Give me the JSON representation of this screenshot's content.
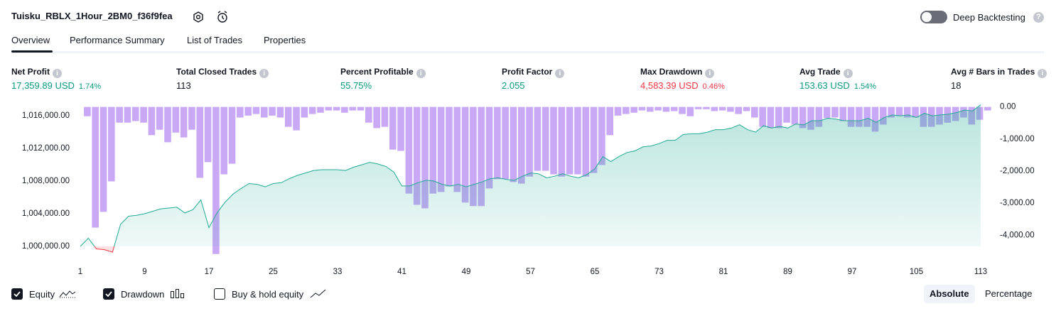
{
  "header": {
    "title": "Tuisku_RBLX_1Hour_2BM0_f36f9fea",
    "deep_backtesting": "Deep Backtesting"
  },
  "tabs": [
    "Overview",
    "Performance Summary",
    "List of Trades",
    "Properties"
  ],
  "metrics": [
    {
      "label": "Net Profit",
      "value": "17,359.89 USD",
      "pct": "1.74%",
      "tone": "positive"
    },
    {
      "label": "Total Closed Trades",
      "value": "113",
      "tone": "neutral"
    },
    {
      "label": "Percent Profitable",
      "value": "55.75%",
      "tone": "positive"
    },
    {
      "label": "Profit Factor",
      "value": "2.055",
      "tone": "positive"
    },
    {
      "label": "Max Drawdown",
      "value": "4,583.39 USD",
      "pct": "0.46%",
      "tone": "negative"
    },
    {
      "label": "Avg Trade",
      "value": "153.63 USD",
      "pct": "1.54%",
      "tone": "positive"
    },
    {
      "label": "Avg # Bars in Trades",
      "value": "18",
      "tone": "neutral"
    }
  ],
  "chart_data": {
    "type": "equity",
    "x": [
      1,
      2,
      3,
      4,
      5,
      6,
      7,
      8,
      9,
      10,
      11,
      12,
      13,
      14,
      15,
      16,
      17,
      18,
      19,
      20,
      21,
      22,
      23,
      24,
      25,
      26,
      27,
      28,
      29,
      30,
      31,
      32,
      33,
      34,
      35,
      36,
      37,
      38,
      39,
      40,
      41,
      42,
      43,
      44,
      45,
      46,
      47,
      48,
      49,
      50,
      51,
      52,
      53,
      54,
      55,
      56,
      57,
      58,
      59,
      60,
      61,
      62,
      63,
      64,
      65,
      66,
      67,
      68,
      69,
      70,
      71,
      72,
      73,
      74,
      75,
      76,
      77,
      78,
      79,
      80,
      81,
      82,
      83,
      84,
      85,
      86,
      87,
      88,
      89,
      90,
      91,
      92,
      93,
      94,
      95,
      96,
      97,
      98,
      99,
      100,
      101,
      102,
      103,
      104,
      105,
      106,
      107,
      108,
      109,
      110,
      111,
      112,
      113
    ],
    "xlim": [
      1,
      113
    ],
    "xticks": [
      1,
      9,
      17,
      25,
      33,
      41,
      49,
      57,
      65,
      73,
      81,
      89,
      97,
      105,
      113
    ],
    "ylim": [
      999000,
      1017400
    ],
    "yticks": [
      {
        "value": 1000000,
        "label": "1,000,000.00"
      },
      {
        "value": 1004000,
        "label": "1,004,000.00"
      },
      {
        "value": 1008000,
        "label": "1,008,000.00"
      },
      {
        "value": 1012000,
        "label": "1,012,000.00"
      },
      {
        "value": 1016000,
        "label": "1,016,000.00"
      }
    ],
    "y2lim": [
      -4600,
      80
    ],
    "y2ticks": [
      {
        "value": 0,
        "label": "0.00"
      },
      {
        "value": -1000,
        "label": "-1,000.00"
      },
      {
        "value": -2000,
        "label": "-2,000.00"
      },
      {
        "value": -3000,
        "label": "-3,000.00"
      },
      {
        "value": -4000,
        "label": "-4,000.00"
      }
    ],
    "series": [
      {
        "name": "Equity",
        "color": "#22ab94",
        "negative_color": "#f23645",
        "checked": true,
        "values": [
          1000000,
          1001000,
          999700,
          999600,
          999300,
          1002700,
          1003700,
          1003800,
          1004000,
          1004300,
          1004600,
          1004700,
          1004800,
          1004100,
          1004500,
          1005700,
          1002300,
          1004100,
          1005400,
          1006400,
          1007100,
          1007700,
          1007600,
          1007300,
          1007700,
          1007800,
          1008300,
          1008700,
          1009000,
          1009300,
          1009400,
          1009400,
          1009400,
          1009300,
          1009700,
          1010000,
          1010300,
          1010100,
          1009800,
          1009100,
          1007400,
          1007400,
          1007800,
          1008100,
          1008000,
          1007600,
          1007400,
          1007600,
          1007300,
          1007600,
          1007900,
          1008300,
          1008400,
          1008200,
          1008100,
          1008600,
          1009000,
          1008900,
          1008400,
          1008600,
          1008900,
          1008600,
          1008400,
          1008800,
          1009500,
          1011000,
          1010400,
          1011000,
          1011500,
          1011700,
          1012200,
          1012300,
          1012600,
          1013000,
          1013000,
          1013700,
          1013800,
          1013800,
          1014000,
          1014300,
          1014300,
          1014500,
          1014900,
          1014300,
          1014000,
          1014800,
          1014500,
          1014700,
          1014500,
          1015000,
          1014900,
          1015400,
          1015400,
          1015700,
          1015600,
          1015400,
          1015400,
          1015400,
          1015700,
          1015200,
          1015800,
          1016100,
          1016000,
          1016100,
          1015800,
          1016300,
          1016000,
          1016100,
          1016200,
          1016400,
          1016700,
          1016600,
          1017360
        ]
      },
      {
        "name": "Drawdown",
        "color": "#c9a9f6",
        "axis": "y2",
        "checked": true,
        "values": [
          -290,
          -3760,
          -3270,
          -2320,
          -490,
          -490,
          -440,
          -490,
          -880,
          -710,
          -1100,
          -800,
          -950,
          -710,
          -2210,
          -1720,
          -4583,
          -2100,
          -1770,
          -330,
          -270,
          -220,
          -330,
          -270,
          -330,
          -620,
          -730,
          -330,
          -220,
          -180,
          -110,
          -110,
          -180,
          -110,
          -110,
          -490,
          -660,
          -620,
          -1330,
          -1370,
          -2700,
          -3050,
          -3160,
          -2700,
          -2650,
          -2480,
          -2650,
          -2980,
          -3090,
          -3090,
          -2540,
          -2250,
          -2250,
          -2340,
          -2390,
          -2170,
          -1990,
          -1990,
          -2100,
          -2170,
          -2100,
          -2100,
          -2170,
          -2060,
          -1810,
          -880,
          -270,
          -220,
          -180,
          -110,
          -150,
          -110,
          -150,
          -130,
          -220,
          -290,
          -70,
          -70,
          -130,
          -110,
          -150,
          -220,
          -130,
          -330,
          -620,
          -660,
          -660,
          -490,
          -550,
          -660,
          -710,
          -620,
          -350,
          -330,
          -440,
          -620,
          -620,
          -620,
          -770,
          -550,
          -330,
          -290,
          -330,
          -330,
          -620,
          -620,
          -550,
          -490,
          -440,
          -330,
          -550,
          -400,
          -110
        ]
      }
    ],
    "extra_toggle": {
      "label": "Buy & hold equity",
      "checked": false
    },
    "modes": [
      {
        "label": "Absolute",
        "selected": true
      },
      {
        "label": "Percentage",
        "selected": false
      }
    ]
  }
}
